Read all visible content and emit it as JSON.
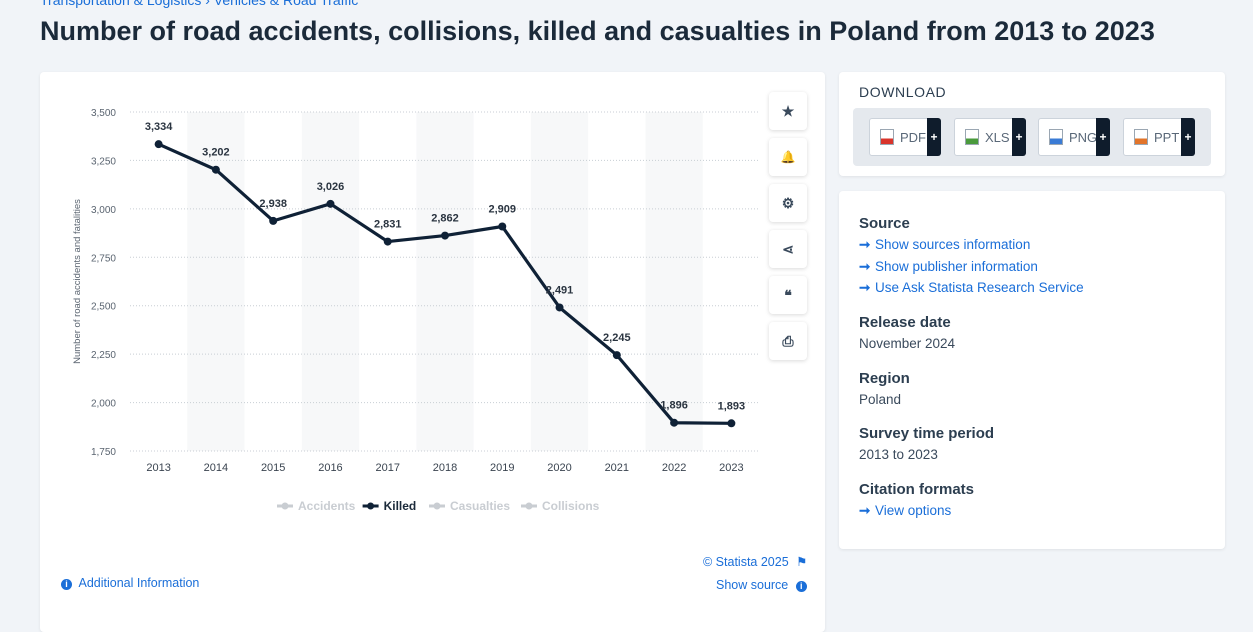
{
  "breadcrumb": "Transportation & Logistics › Vehicles & Road Traffic",
  "page_title": "Number of road accidents, collisions, killed and casualties in Poland from 2013 to 2023",
  "toolbar": {
    "icons": [
      "star-icon",
      "bell-icon",
      "gear-icon",
      "share-icon",
      "quote-icon",
      "print-icon"
    ],
    "glyphs": [
      "★",
      "🔔",
      "⚙",
      "⋖",
      "❝",
      "⎙"
    ]
  },
  "chart_data": {
    "type": "line",
    "x": [
      "2013",
      "2014",
      "2015",
      "2016",
      "2017",
      "2018",
      "2019",
      "2020",
      "2021",
      "2022",
      "2023"
    ],
    "series": [
      {
        "name": "Killed",
        "values": [
          3334,
          3202,
          2938,
          3026,
          2831,
          2862,
          2909,
          2491,
          2245,
          1896,
          1893
        ],
        "active": true
      }
    ],
    "data_labels": [
      "3,334",
      "3,202",
      "2,938",
      "3,026",
      "2,831",
      "2,862",
      "2,909",
      "2,491",
      "2,245",
      "1,896",
      "1,893"
    ],
    "ylabel": "Number of road accidents and fatalities",
    "ylim": [
      1750,
      3500
    ],
    "yticks": [
      "3,500",
      "3,250",
      "3,000",
      "2,750",
      "2,500",
      "2,250",
      "2,000",
      "1,750"
    ],
    "ytick_values": [
      3500,
      3250,
      3000,
      2750,
      2500,
      2250,
      2000,
      1750
    ],
    "legend": [
      {
        "name": "Accidents",
        "active": false
      },
      {
        "name": "Killed",
        "active": true
      },
      {
        "name": "Casualties",
        "active": false
      },
      {
        "name": "Collisions",
        "active": false
      }
    ],
    "legend_position": "bottom",
    "grid": true,
    "line_color": "#0f2136",
    "inactive_color": "#c9cdd2"
  },
  "credits": {
    "statista": "© Statista 2025",
    "additional_info": "Additional Information",
    "show_source": "Show source"
  },
  "download": {
    "title": "DOWNLOAD",
    "buttons": [
      {
        "label": "PDF",
        "color": "#d9342b"
      },
      {
        "label": "XLS",
        "color": "#4a9a3c"
      },
      {
        "label": "PNG",
        "color": "#3a7bd5"
      },
      {
        "label": "PPT",
        "color": "#e2742a"
      }
    ],
    "plus": "+"
  },
  "info": {
    "source_heading": "Source",
    "source_links": [
      "Show sources information",
      "Show publisher information",
      "Use Ask Statista Research Service"
    ],
    "release_heading": "Release date",
    "release_value": "November 2024",
    "region_heading": "Region",
    "region_value": "Poland",
    "survey_heading": "Survey time period",
    "survey_value": "2013 to 2023",
    "citation_heading": "Citation formats",
    "citation_link": "View options"
  }
}
